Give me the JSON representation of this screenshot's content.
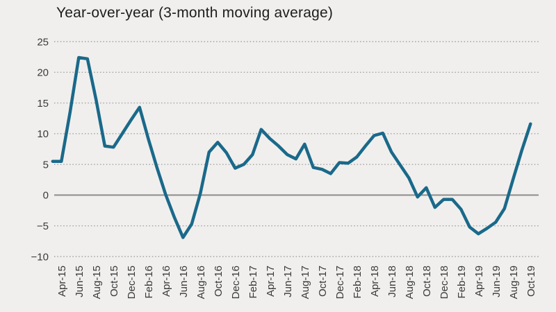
{
  "page": {
    "background_color": "#f0efed"
  },
  "chart_data": {
    "type": "line",
    "title": "Year-over-year (3-month moving average)",
    "xlabel": "",
    "ylabel": "",
    "ylim": [
      -10,
      25
    ],
    "y_ticks": [
      25,
      20,
      15,
      10,
      5,
      0,
      -5,
      -10
    ],
    "y_tick_labels": [
      "25",
      "20",
      "15",
      "10",
      "5",
      "0",
      "−5",
      "−10"
    ],
    "grid": "horizontal-dotted",
    "zero_line": true,
    "legend": "none",
    "x": [
      "Mar-15",
      "Apr-15",
      "May-15",
      "Jun-15",
      "Jul-15",
      "Aug-15",
      "Sep-15",
      "Oct-15",
      "Nov-15",
      "Dec-15",
      "Jan-16",
      "Feb-16",
      "Mar-16",
      "Apr-16",
      "May-16",
      "Jun-16",
      "Jul-16",
      "Aug-16",
      "Sep-16",
      "Oct-16",
      "Nov-16",
      "Dec-16",
      "Jan-17",
      "Feb-17",
      "Mar-17",
      "Apr-17",
      "May-17",
      "Jun-17",
      "Jul-17",
      "Aug-17",
      "Sep-17",
      "Oct-17",
      "Nov-17",
      "Dec-17",
      "Jan-18",
      "Feb-18",
      "Mar-18",
      "Apr-18",
      "May-18",
      "Jun-18",
      "Jul-18",
      "Aug-18",
      "Sep-18",
      "Oct-18",
      "Nov-18",
      "Dec-18",
      "Jan-19",
      "Feb-19",
      "Mar-19",
      "Apr-19",
      "May-19",
      "Jun-19",
      "Jul-19",
      "Aug-19",
      "Sep-19",
      "Oct-19"
    ],
    "values": [
      5.5,
      5.5,
      13.5,
      22.4,
      22.2,
      15.5,
      8.0,
      7.8,
      10.0,
      12.2,
      14.3,
      9.2,
      4.5,
      0.1,
      -3.6,
      -6.9,
      -4.7,
      0.3,
      7.0,
      8.6,
      6.9,
      4.4,
      5.0,
      6.6,
      10.7,
      9.2,
      8.0,
      6.6,
      5.9,
      8.3,
      4.5,
      4.2,
      3.5,
      5.3,
      5.2,
      6.2,
      8.0,
      9.7,
      10.1,
      7.0,
      4.9,
      2.8,
      -0.3,
      1.2,
      -2.0,
      -0.7,
      -0.7,
      -2.3,
      -5.2,
      -6.3,
      -5.4,
      -4.4,
      -2.2,
      2.6,
      7.3,
      11.6
    ],
    "x_tick_labels": [
      "Apr-15",
      "Jun-15",
      "Aug-15",
      "Oct-15",
      "Dec-15",
      "Feb-16",
      "Apr-16",
      "Jun-16",
      "Aug-16",
      "Oct-16",
      "Dec-16",
      "Feb-17",
      "Apr-17",
      "Jun-17",
      "Aug-17",
      "Oct-17",
      "Dec-17",
      "Feb-18",
      "Apr-18",
      "Jun-18",
      "Aug-18",
      "Oct-18",
      "Dec-18",
      "Feb-19",
      "Apr-19",
      "Jun-19",
      "Aug-19",
      "Oct-19"
    ],
    "colors": {
      "line": "#1a698a",
      "background": "#f0efed",
      "gridline": "#a1a1a1",
      "zero_line": "#8c8c8c",
      "title_text": "#1d1d1d",
      "tick_text": "#3a3a3a"
    }
  }
}
